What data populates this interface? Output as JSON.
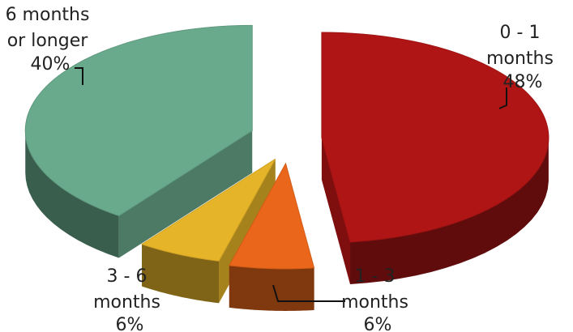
{
  "chart_data": {
    "type": "pie",
    "style": "3d-exploded",
    "slices": [
      {
        "label_lines": [
          "0 - 1",
          "months"
        ],
        "pct_text": "48%",
        "value": 48,
        "color": "#b01515"
      },
      {
        "label_lines": [
          "1 - 3",
          "months"
        ],
        "pct_text": "6%",
        "value": 6,
        "color": "#e9661a"
      },
      {
        "label_lines": [
          "3 - 6",
          "months"
        ],
        "pct_text": "6%",
        "value": 6,
        "color": "#e6b428"
      },
      {
        "label_lines": [
          "6  months",
          "or longer"
        ],
        "pct_text": "40%",
        "value": 40,
        "color": "#6aaa8c"
      }
    ]
  }
}
